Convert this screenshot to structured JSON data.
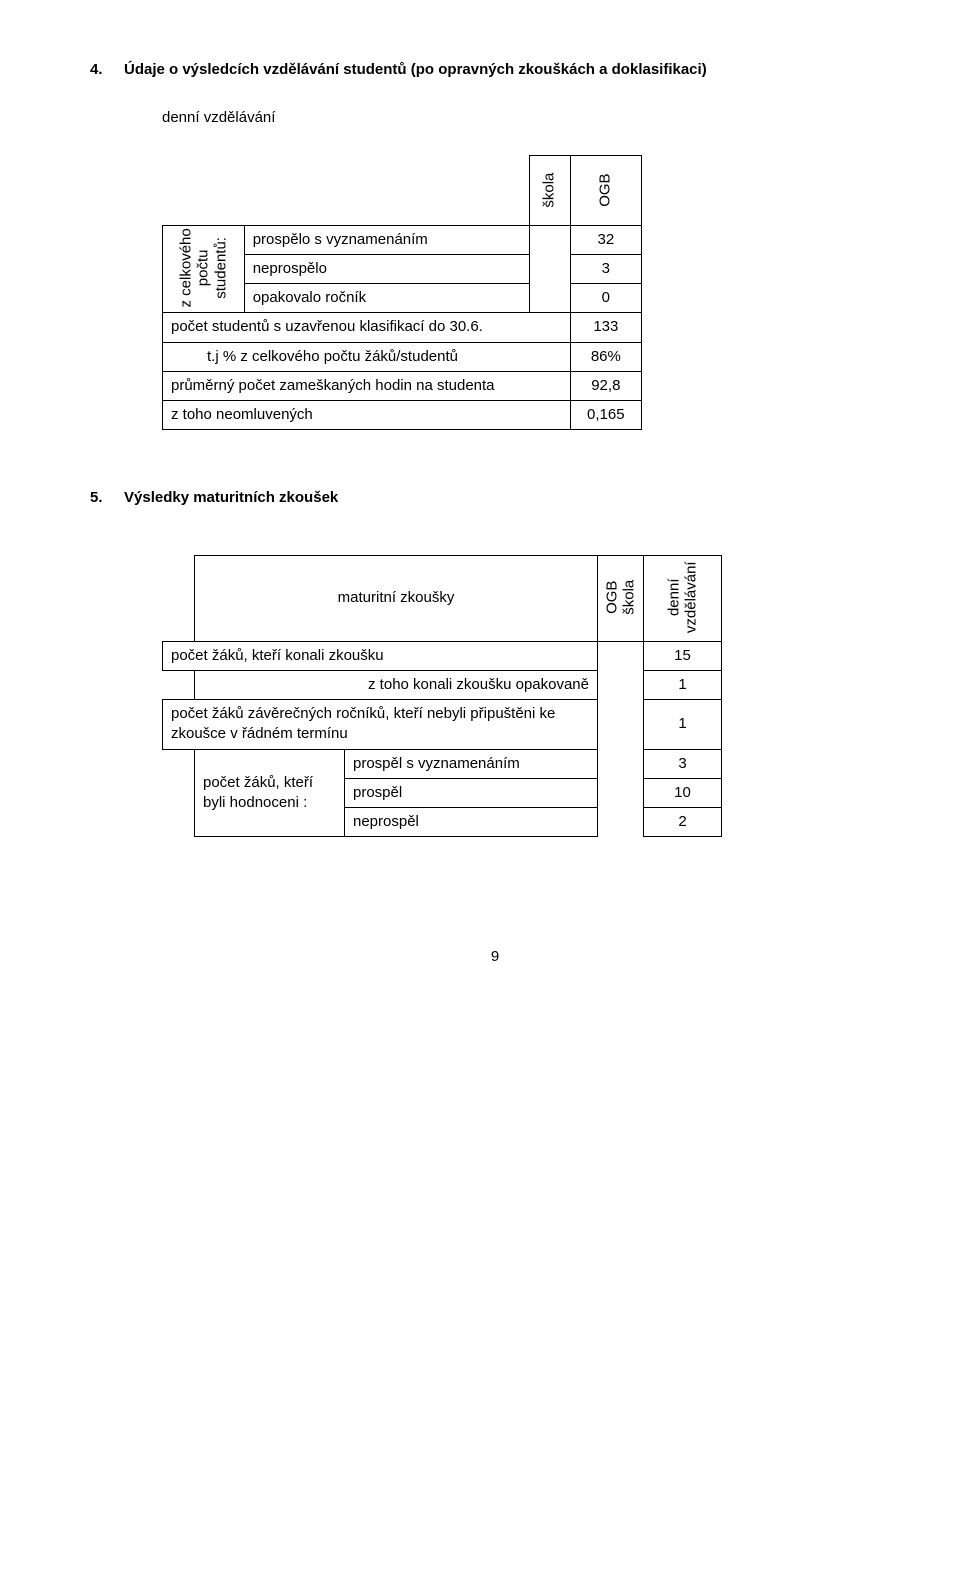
{
  "section4": {
    "number": "4.",
    "title": "Údaje o výsledcích vzdělávání studentů (po opravných zkouškách a doklasifikaci)",
    "subtitle": "denní vzdělávání",
    "col_skola": "škola",
    "col_ogb": "OGB",
    "rowgroup_label": "z celkového\npočtu\nstudentů:",
    "rows": {
      "r1_label": "prospělo s vyznamenáním",
      "r1_val": "32",
      "r2_label": "neprospělo",
      "r2_val": "3",
      "r3_label": "opakovalo ročník",
      "r3_val": "0",
      "r4_label": "počet studentů s uzavřenou klasifikací do 30.6.",
      "r4_val": "133",
      "r5_label": "t.j % z celkového počtu žáků/studentů",
      "r5_val": "86%",
      "r6_label": "průměrný počet zameškaných hodin na studenta",
      "r6_val": "92,8",
      "r7_label": "z toho neomluvených",
      "r7_val": "0,165"
    }
  },
  "section5": {
    "number": "5.",
    "title": "Výsledky maturitních zkoušek",
    "head_label": "maturitní zkoušky",
    "col_ogb_skola": "OGB\nškola",
    "col_denni": "denní\nvzdělávání",
    "rows": {
      "r1_label": "počet žáků, kteří konali zkoušku",
      "r1_val": "15",
      "r2_label": "z toho konali zkoušku opakovaně",
      "r2_val": "1",
      "r3_label": "počet žáků závěrečných ročníků, kteří nebyli připuštěni ke zkoušce v řádném termínu",
      "r3_val": "1",
      "rg_label": "počet žáků, kteří byli hodnoceni :",
      "r4_label": "prospěl s vyznamenáním",
      "r4_val": "3",
      "r5_label": "prospěl",
      "r5_val": "10",
      "r6_label": "neprospěl",
      "r6_val": "2"
    }
  },
  "page_number": "9"
}
